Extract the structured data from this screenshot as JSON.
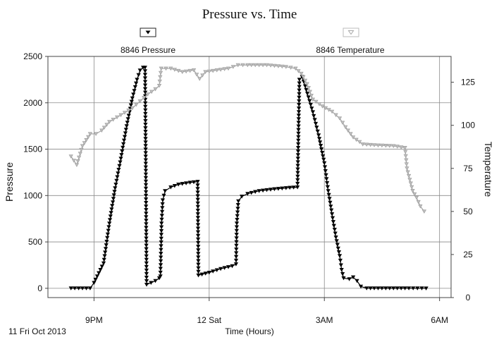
{
  "chart_data": {
    "type": "line",
    "title": "Pressure vs. Time",
    "xlabel": "Time (Hours)",
    "ylabel": "Pressure",
    "y2label": "Temperature",
    "date_label": "11 Fri Oct 2013",
    "x_unit": "hours after 12 Sat (midnight)",
    "xlim": [
      -4.2,
      6.3
    ],
    "x_ticks": [
      {
        "value": -3,
        "label": "9PM"
      },
      {
        "value": 0,
        "label": "12 Sat"
      },
      {
        "value": 3,
        "label": "3AM"
      },
      {
        "value": 6,
        "label": "6AM"
      }
    ],
    "ylim": [
      -100,
      2500
    ],
    "y_ticks": [
      0,
      500,
      1000,
      1500,
      2000,
      2500
    ],
    "y2lim": [
      0,
      140
    ],
    "y2_ticks": [
      0,
      25,
      50,
      75,
      100,
      125
    ],
    "grid": true,
    "legend_position": "top",
    "series": [
      {
        "name": "8846 Pressure",
        "axis": "left",
        "color": "#000000",
        "marker": "filled-triangle-down",
        "points": [
          [
            -3.6,
            0
          ],
          [
            -3.5,
            0
          ],
          [
            -3.1,
            0
          ],
          [
            -3.0,
            60
          ],
          [
            -2.75,
            270
          ],
          [
            -2.6,
            700
          ],
          [
            -2.45,
            1080
          ],
          [
            -2.3,
            1400
          ],
          [
            -2.15,
            1750
          ],
          [
            -2.0,
            2050
          ],
          [
            -1.88,
            2250
          ],
          [
            -1.8,
            2350
          ],
          [
            -1.72,
            2380
          ],
          [
            -1.67,
            2380
          ],
          [
            -1.63,
            40
          ],
          [
            -1.4,
            80
          ],
          [
            -1.3,
            110
          ],
          [
            -1.27,
            130
          ],
          [
            -1.24,
            700
          ],
          [
            -1.21,
            950
          ],
          [
            -1.15,
            1050
          ],
          [
            -1.0,
            1090
          ],
          [
            -0.8,
            1120
          ],
          [
            -0.5,
            1140
          ],
          [
            -0.3,
            1150
          ],
          [
            -0.28,
            140
          ],
          [
            0.0,
            170
          ],
          [
            0.3,
            210
          ],
          [
            0.6,
            240
          ],
          [
            0.7,
            260
          ],
          [
            0.72,
            700
          ],
          [
            0.76,
            940
          ],
          [
            0.85,
            990
          ],
          [
            1.0,
            1020
          ],
          [
            1.3,
            1050
          ],
          [
            1.7,
            1070
          ],
          [
            2.1,
            1085
          ],
          [
            2.3,
            1090
          ],
          [
            2.35,
            2250
          ],
          [
            2.42,
            2280
          ],
          [
            2.5,
            2180
          ],
          [
            2.7,
            1900
          ],
          [
            2.85,
            1650
          ],
          [
            3.0,
            1350
          ],
          [
            3.1,
            1050
          ],
          [
            3.2,
            800
          ],
          [
            3.3,
            550
          ],
          [
            3.4,
            350
          ],
          [
            3.45,
            200
          ],
          [
            3.5,
            110
          ],
          [
            3.65,
            100
          ],
          [
            3.75,
            120
          ],
          [
            3.85,
            80
          ],
          [
            3.95,
            20
          ],
          [
            4.1,
            0
          ],
          [
            4.6,
            0
          ],
          [
            5.2,
            0
          ],
          [
            5.65,
            0
          ]
        ]
      },
      {
        "name": "8846 Temperature",
        "axis": "right",
        "color": "#a8a8a8",
        "marker": "hollow-triangle-down",
        "points": [
          [
            -3.6,
            82
          ],
          [
            -3.45,
            77
          ],
          [
            -3.3,
            88
          ],
          [
            -3.1,
            95
          ],
          [
            -2.95,
            95
          ],
          [
            -2.8,
            97
          ],
          [
            -2.6,
            102
          ],
          [
            -2.3,
            106
          ],
          [
            -2.0,
            110
          ],
          [
            -1.8,
            114
          ],
          [
            -1.6,
            118
          ],
          [
            -1.4,
            121
          ],
          [
            -1.3,
            123
          ],
          [
            -1.25,
            133
          ],
          [
            -1.0,
            133
          ],
          [
            -0.7,
            131
          ],
          [
            -0.4,
            132
          ],
          [
            -0.25,
            127
          ],
          [
            -0.1,
            131
          ],
          [
            0.2,
            132
          ],
          [
            0.5,
            133
          ],
          [
            0.75,
            135
          ],
          [
            1.0,
            135
          ],
          [
            1.5,
            135
          ],
          [
            2.0,
            134
          ],
          [
            2.25,
            133
          ],
          [
            2.4,
            130
          ],
          [
            2.55,
            124
          ],
          [
            2.7,
            115
          ],
          [
            2.95,
            111
          ],
          [
            3.2,
            108
          ],
          [
            3.4,
            104
          ],
          [
            3.55,
            99
          ],
          [
            3.75,
            93
          ],
          [
            4.0,
            89
          ],
          [
            4.3,
            88.5
          ],
          [
            4.8,
            88
          ],
          [
            5.1,
            87
          ],
          [
            5.15,
            75
          ],
          [
            5.3,
            62
          ],
          [
            5.4,
            58
          ],
          [
            5.5,
            53
          ],
          [
            5.6,
            50
          ]
        ]
      }
    ]
  }
}
